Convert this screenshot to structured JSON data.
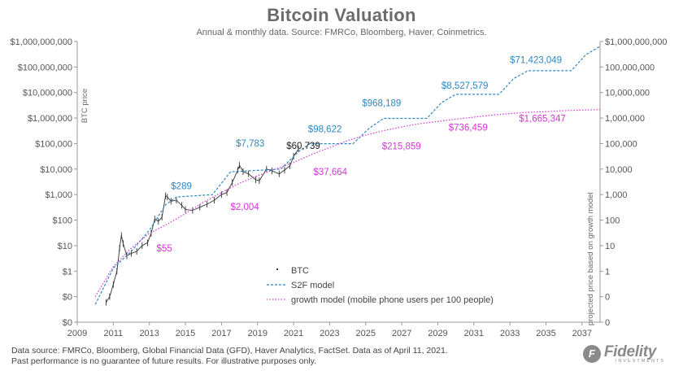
{
  "title": "Bitcoin Valuation",
  "subtitle": "Annual & monthly  data.  Source: FMRCo, Bloomberg, Haver, Coinmetrics.",
  "footer_line1": "Data source: FMRCo, Bloomberg, Global Financial Data (GFD), Haver Analytics, FactSet. Data as of April 11, 2021.",
  "footer_line2": "Past performance is no guarantee of future results. For illustrative purposes only.",
  "logo_text": "Fidelity",
  "logo_subtext": "INVESTMENTS",
  "colors": {
    "btc": "#333333",
    "s2f": "#2e86c1",
    "growth": "#d633d6",
    "axis": "#999999"
  },
  "chart_data": {
    "type": "line",
    "y_scale": "log",
    "xlim": [
      2009,
      2038
    ],
    "ylim": [
      0.01,
      1000000000
    ],
    "x_ticks": [
      2009,
      2011,
      2013,
      2015,
      2017,
      2019,
      2021,
      2023,
      2025,
      2027,
      2029,
      2031,
      2033,
      2035,
      2037
    ],
    "y_ticks": [
      {
        "value": 1000000000,
        "label": "$1,000,000,000"
      },
      {
        "value": 100000000,
        "label": "$100,000,000"
      },
      {
        "value": 10000000,
        "label": "$10,000,000"
      },
      {
        "value": 1000000,
        "label": "$1,000,000"
      },
      {
        "value": 100000,
        "label": "$100,000"
      },
      {
        "value": 10000,
        "label": "$10,000"
      },
      {
        "value": 1000,
        "label": "$1,000"
      },
      {
        "value": 100,
        "label": "$100"
      },
      {
        "value": 10,
        "label": "$10"
      },
      {
        "value": 1,
        "label": "$1"
      },
      {
        "value": 0.1,
        "label": "$0"
      },
      {
        "value": 0.01,
        "label": "$0"
      }
    ],
    "y2_ticks": [
      {
        "value": 1000000000,
        "label": "$1,000,000,000"
      },
      {
        "value": 100000000,
        "label": "100,000,000"
      },
      {
        "value": 10000000,
        "label": "10,000,000"
      },
      {
        "value": 1000000,
        "label": "1,000,000"
      },
      {
        "value": 100000,
        "label": "100,000"
      },
      {
        "value": 10000,
        "label": "10,000"
      },
      {
        "value": 1000,
        "label": "1,000"
      },
      {
        "value": 100,
        "label": "100"
      },
      {
        "value": 10,
        "label": "10"
      },
      {
        "value": 1,
        "label": "1"
      },
      {
        "value": 0.1,
        "label": "0"
      },
      {
        "value": 0.01,
        "label": "0"
      }
    ],
    "ylabel": "BTC price",
    "y2label": "projected price based on growth model",
    "series": [
      {
        "name": "BTC",
        "style": "ticks",
        "x": [
          2010.6,
          2010.8,
          2011.0,
          2011.2,
          2011.35,
          2011.45,
          2011.55,
          2011.75,
          2012.0,
          2012.3,
          2012.6,
          2012.9,
          2013.1,
          2013.3,
          2013.5,
          2013.7,
          2013.9,
          2014.0,
          2014.2,
          2014.5,
          2014.8,
          2015.0,
          2015.4,
          2015.8,
          2016.2,
          2016.6,
          2017.0,
          2017.3,
          2017.6,
          2017.9,
          2018.0,
          2018.2,
          2018.5,
          2018.9,
          2019.1,
          2019.5,
          2019.8,
          2020.2,
          2020.5,
          2020.8,
          2021.0,
          2021.27
        ],
        "y": [
          0.06,
          0.1,
          0.3,
          1.0,
          8,
          25,
          12,
          4,
          5,
          6,
          10,
          13,
          30,
          110,
          90,
          130,
          900,
          800,
          550,
          600,
          380,
          260,
          240,
          320,
          420,
          600,
          1000,
          1200,
          3000,
          9000,
          14000,
          8000,
          6500,
          3800,
          3500,
          10000,
          8500,
          6500,
          9200,
          13500,
          32000,
          60739
        ]
      },
      {
        "name": "S2F model",
        "style": "dashed",
        "x": [
          2010.0,
          2011.0,
          2012.0,
          2013.0,
          2013.9,
          2014.5,
          2016.5,
          2017.5,
          2020.3,
          2021.3,
          2021.9,
          2024.3,
          2025.2,
          2026.0,
          2028.4,
          2029.2,
          2030.0,
          2032.4,
          2033.2,
          2034.0,
          2036.4,
          2037.2,
          2038.0
        ],
        "y": [
          0.05,
          1.3,
          6,
          40,
          400,
          800,
          1000,
          7783,
          10000,
          50000,
          98622,
          98622,
          400000,
          968189,
          968189,
          4000000,
          8527579,
          8527579,
          35000000,
          71423049,
          71423049,
          300000000,
          650000000
        ]
      },
      {
        "name": "growth model (mobile phone users per 100 people)",
        "style": "dotted",
        "x": [
          2010.0,
          2011.0,
          2012.0,
          2013.0,
          2014.0,
          2015.0,
          2016.0,
          2017.0,
          2018.0,
          2019.0,
          2020.0,
          2021.0,
          2022.0,
          2023.0,
          2024.0,
          2025.0,
          2026.0,
          2027.0,
          2028.0,
          2029.0,
          2030.0,
          2031.0,
          2032.0,
          2033.0,
          2034.0,
          2035.0,
          2036.0,
          2037.0,
          2038.0
        ],
        "y": [
          0.1,
          1.5,
          8,
          30,
          70,
          180,
          500,
          1200,
          2800,
          5500,
          10000,
          18000,
          37664,
          70000,
          130000,
          215859,
          320000,
          450000,
          600000,
          736459,
          900000,
          1080000,
          1300000,
          1500000,
          1665347,
          1800000,
          1950000,
          2050000,
          2150000
        ]
      }
    ],
    "annotations": [
      {
        "text": "$289",
        "x": 2014.2,
        "y": 1650,
        "color": "s2f"
      },
      {
        "text": "$7,783",
        "x": 2017.8,
        "y": 78000,
        "color": "s2f"
      },
      {
        "text": "$60,739",
        "x": 2020.6,
        "y": 62000,
        "color": "btc"
      },
      {
        "text": "$98,622",
        "x": 2021.8,
        "y": 280000,
        "color": "s2f"
      },
      {
        "text": "$968,189",
        "x": 2024.8,
        "y": 2900000,
        "color": "s2f"
      },
      {
        "text": "$8,527,579",
        "x": 2029.2,
        "y": 14000000,
        "color": "s2f"
      },
      {
        "text": "$71,423,049",
        "x": 2033.0,
        "y": 145000000,
        "color": "s2f"
      },
      {
        "text": "$55",
        "x": 2013.4,
        "y": 6,
        "color": "growth"
      },
      {
        "text": "$2,004",
        "x": 2017.5,
        "y": 250,
        "color": "growth"
      },
      {
        "text": "$37,664",
        "x": 2022.1,
        "y": 5800,
        "color": "growth"
      },
      {
        "text": "$215,859",
        "x": 2025.9,
        "y": 60000,
        "color": "growth"
      },
      {
        "text": "$736,459",
        "x": 2029.6,
        "y": 320000,
        "color": "growth"
      },
      {
        "text": "$1,665,347",
        "x": 2033.5,
        "y": 720000,
        "color": "growth"
      }
    ],
    "legend": {
      "position": "bottom-center",
      "items": [
        {
          "series": "BTC",
          "label": "BTC"
        },
        {
          "series": "S2F model",
          "label": "S2F model"
        },
        {
          "series": "growth model (mobile phone users per 100 people)",
          "label": "growth model (mobile phone users per 100 people)"
        }
      ]
    },
    "grid": false
  }
}
